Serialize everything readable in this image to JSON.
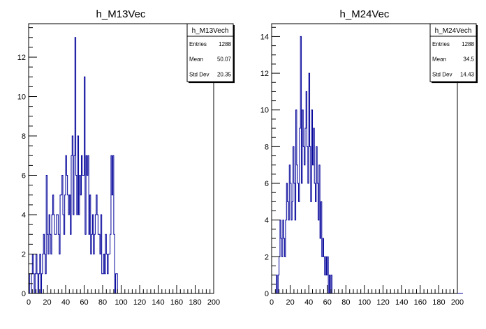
{
  "chart_data": [
    {
      "type": "bar",
      "title": "h_M13Vec",
      "xlim": [
        0,
        200
      ],
      "ylim": [
        0,
        13.7
      ],
      "x_ticks": [
        0,
        20,
        40,
        60,
        80,
        100,
        120,
        140,
        160,
        180,
        200
      ],
      "y_ticks": [
        0,
        2,
        4,
        6,
        8,
        10,
        12
      ],
      "bin_width": 1,
      "bin_start": 0,
      "color": "#000099",
      "stats": {
        "name": "h_M13Vech",
        "rows": [
          {
            "label": "Entries",
            "value": "1288"
          },
          {
            "label": "Mean",
            "value": "50.07"
          },
          {
            "label": "Std Dev",
            "value": "20.35"
          }
        ]
      },
      "values": [
        1,
        0,
        0,
        1,
        2,
        1,
        0,
        1,
        2,
        1,
        0,
        1,
        2,
        0,
        1,
        2,
        3,
        2,
        1,
        6,
        3,
        2,
        4,
        3,
        2,
        4,
        5,
        4,
        3,
        3,
        4,
        4,
        3,
        2,
        5,
        5,
        6,
        4,
        3,
        5,
        7,
        6,
        5,
        4,
        5,
        3,
        7,
        8,
        4,
        7,
        13,
        6,
        4,
        8,
        4,
        6,
        5,
        7,
        6,
        6,
        11,
        3,
        7,
        6,
        7,
        3,
        5,
        2,
        3,
        4,
        2,
        3,
        4,
        5,
        4,
        3,
        3,
        2,
        4,
        1,
        1,
        2,
        1,
        3,
        2,
        1,
        2,
        2,
        3,
        7,
        5,
        7,
        3,
        0,
        1,
        1,
        0,
        0,
        0,
        0,
        0,
        0,
        0,
        0,
        0,
        0,
        0,
        0,
        0,
        0,
        0,
        0,
        0,
        0,
        0,
        0,
        0,
        0,
        0,
        0,
        0,
        0,
        0,
        0,
        0,
        0,
        0,
        0,
        0,
        0,
        0,
        0,
        0,
        0,
        0,
        0,
        0,
        0,
        0,
        0,
        0,
        0,
        0,
        0,
        0,
        0,
        0,
        0,
        0,
        0,
        0,
        0,
        0,
        0,
        0,
        0,
        0,
        0,
        0,
        0,
        0,
        0,
        0,
        0,
        0,
        0,
        0,
        0,
        0,
        0,
        0,
        0,
        0,
        0,
        0,
        0,
        0,
        0,
        0,
        0,
        0,
        0,
        0,
        0,
        0,
        0,
        0,
        0,
        0,
        0,
        0,
        0,
        0,
        0,
        0,
        0,
        0,
        0,
        0,
        0
      ]
    },
    {
      "type": "bar",
      "title": "h_M24Vec",
      "xlim": [
        0,
        200
      ],
      "ylim": [
        0,
        14.7
      ],
      "x_ticks": [
        0,
        20,
        40,
        60,
        80,
        100,
        120,
        140,
        160,
        180,
        200
      ],
      "y_ticks": [
        0,
        2,
        4,
        6,
        8,
        10,
        12,
        14
      ],
      "bin_width": 1,
      "bin_start": 0,
      "color": "#000099",
      "stats": {
        "name": "h_M24Vech",
        "rows": [
          {
            "label": "Entries",
            "value": "1288"
          },
          {
            "label": "Mean",
            "value": "34.5"
          },
          {
            "label": "Std Dev",
            "value": "14.43"
          }
        ]
      },
      "values": [
        0,
        0,
        0,
        0,
        0,
        1,
        0,
        1,
        2,
        4,
        3,
        2,
        4,
        3,
        2,
        4,
        6,
        5,
        4,
        7,
        6,
        4,
        5,
        8,
        6,
        4,
        10,
        7,
        6,
        5,
        9,
        14,
        6,
        10,
        8,
        7,
        9,
        11,
        8,
        6,
        12,
        8,
        5,
        10,
        7,
        9,
        6,
        5,
        8,
        6,
        4,
        7,
        3,
        5,
        2,
        3,
        2,
        1,
        2,
        1,
        2,
        0,
        1,
        0,
        1,
        0,
        0,
        0,
        0,
        0,
        0,
        0,
        0,
        0,
        0,
        0,
        0,
        0,
        0,
        0,
        0,
        0,
        0,
        0,
        0,
        0,
        0,
        0,
        0,
        0,
        0,
        0,
        0,
        0,
        0,
        0,
        0,
        0,
        0,
        0,
        0,
        0,
        0,
        0,
        0,
        0,
        0,
        0,
        0,
        0,
        0,
        0,
        0,
        0,
        0,
        0,
        0,
        0,
        0,
        0,
        0,
        0,
        0,
        0,
        0,
        0,
        0,
        0,
        0,
        0,
        0,
        0,
        0,
        0,
        0,
        0,
        0,
        0,
        0,
        0,
        0,
        0,
        0,
        0,
        0,
        0,
        0,
        0,
        0,
        0,
        0,
        0,
        0,
        0,
        0,
        0,
        0,
        0,
        0,
        0,
        0,
        0,
        0,
        0,
        0,
        0,
        0,
        0,
        0,
        0,
        0,
        0,
        0,
        0,
        0,
        0,
        0,
        0,
        0,
        0,
        0,
        0,
        0,
        0,
        0,
        0,
        0,
        0,
        0,
        0,
        0,
        0,
        0,
        0,
        0,
        0,
        0,
        0,
        0,
        0,
        0,
        0,
        0,
        0,
        0,
        0
      ]
    }
  ]
}
